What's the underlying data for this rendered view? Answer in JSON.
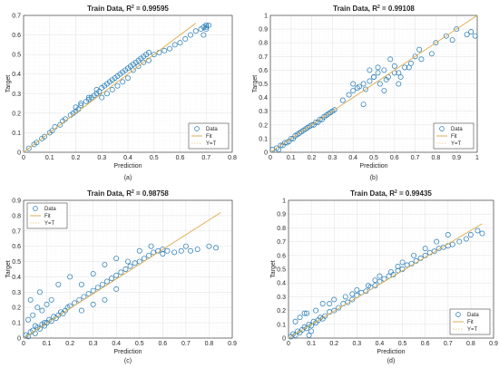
{
  "chart_data": [
    {
      "type": "scatter",
      "caption": "(a)",
      "title_prefix": "Train Data, R",
      "title_sup": "2",
      "title_value": " = 0.99595",
      "xlabel": "Prediction",
      "ylabel": "Target",
      "xlim": [
        0,
        0.8
      ],
      "ylim": [
        0,
        0.7
      ],
      "xticks": [
        "0",
        "0.1",
        "0.2",
        "0.3",
        "0.4",
        "0.5",
        "0.6",
        "0.7",
        "0.8"
      ],
      "yticks": [
        "0",
        "0.1",
        "0.2",
        "0.3",
        "0.4",
        "0.5",
        "0.6",
        "0.7"
      ],
      "grid": true,
      "legend": [
        "Data",
        "Fit",
        "Y=T"
      ],
      "legend_position": "bottom-right",
      "fit_line": {
        "x": [
          0,
          0.66
        ],
        "y": [
          0,
          0.66
        ]
      },
      "series": [
        {
          "name": "Data",
          "x": [
            0.02,
            0.04,
            0.05,
            0.07,
            0.08,
            0.1,
            0.11,
            0.12,
            0.14,
            0.15,
            0.16,
            0.18,
            0.19,
            0.2,
            0.21,
            0.22,
            0.24,
            0.25,
            0.26,
            0.27,
            0.28,
            0.29,
            0.3,
            0.31,
            0.32,
            0.33,
            0.34,
            0.35,
            0.36,
            0.37,
            0.38,
            0.39,
            0.4,
            0.41,
            0.42,
            0.43,
            0.44,
            0.45,
            0.46,
            0.47,
            0.48,
            0.5,
            0.52,
            0.54,
            0.56,
            0.58,
            0.6,
            0.62,
            0.64,
            0.66,
            0.68,
            0.69,
            0.7,
            0.7,
            0.7,
            0.71,
            0.69,
            0.7,
            0.3,
            0.32,
            0.34,
            0.36,
            0.38,
            0.4,
            0.42,
            0.44,
            0.46,
            0.48,
            0.2,
            0.22,
            0.25,
            0.28
          ],
          "y": [
            0.02,
            0.04,
            0.05,
            0.07,
            0.08,
            0.1,
            0.11,
            0.13,
            0.14,
            0.16,
            0.17,
            0.19,
            0.2,
            0.21,
            0.22,
            0.24,
            0.26,
            0.27,
            0.28,
            0.29,
            0.3,
            0.31,
            0.33,
            0.34,
            0.35,
            0.36,
            0.37,
            0.38,
            0.39,
            0.4,
            0.41,
            0.42,
            0.43,
            0.44,
            0.45,
            0.46,
            0.47,
            0.48,
            0.49,
            0.5,
            0.51,
            0.5,
            0.51,
            0.52,
            0.53,
            0.55,
            0.56,
            0.58,
            0.6,
            0.62,
            0.63,
            0.64,
            0.65,
            0.65,
            0.64,
            0.65,
            0.6,
            0.63,
            0.28,
            0.3,
            0.32,
            0.34,
            0.36,
            0.38,
            0.42,
            0.44,
            0.46,
            0.47,
            0.23,
            0.25,
            0.28,
            0.32
          ]
        }
      ]
    },
    {
      "type": "scatter",
      "caption": "(b)",
      "title_prefix": "Train Data, R",
      "title_sup": "2",
      "title_value": " = 0.99108",
      "xlabel": "Prediction",
      "ylabel": "Target",
      "xlim": [
        0,
        1
      ],
      "ylim": [
        0,
        1
      ],
      "xticks": [
        "0",
        "0.1",
        "0.2",
        "0.3",
        "0.4",
        "0.5",
        "0.6",
        "0.7",
        "0.8",
        "0.9",
        "1"
      ],
      "yticks": [
        "0",
        "0.1",
        "0.2",
        "0.3",
        "0.4",
        "0.5",
        "0.6",
        "0.7",
        "0.8",
        "0.9",
        "1"
      ],
      "grid": true,
      "legend": [
        "Data",
        "Fit",
        "Y=T"
      ],
      "legend_position": "bottom-right",
      "fit_line": {
        "x": [
          0,
          1
        ],
        "y": [
          0,
          1
        ]
      },
      "series": [
        {
          "name": "Data",
          "x": [
            0.01,
            0.03,
            0.05,
            0.07,
            0.09,
            0.1,
            0.12,
            0.14,
            0.16,
            0.18,
            0.2,
            0.22,
            0.24,
            0.26,
            0.28,
            0.3,
            0.31,
            0.04,
            0.06,
            0.08,
            0.11,
            0.13,
            0.15,
            0.17,
            0.19,
            0.21,
            0.23,
            0.25,
            0.27,
            0.29,
            0.35,
            0.38,
            0.4,
            0.42,
            0.45,
            0.48,
            0.5,
            0.52,
            0.55,
            0.57,
            0.6,
            0.62,
            0.65,
            0.4,
            0.43,
            0.46,
            0.5,
            0.53,
            0.56,
            0.6,
            0.63,
            0.67,
            0.7,
            0.73,
            0.78,
            0.8,
            0.85,
            0.88,
            0.9,
            0.95,
            0.97,
            0.99,
            0.48,
            0.52,
            0.58,
            0.45,
            0.55,
            0.62,
            0.68,
            0.72
          ],
          "y": [
            0.02,
            0.03,
            0.05,
            0.07,
            0.08,
            0.1,
            0.12,
            0.14,
            0.16,
            0.18,
            0.2,
            0.22,
            0.24,
            0.26,
            0.28,
            0.3,
            0.31,
            0.02,
            0.05,
            0.07,
            0.1,
            0.13,
            0.15,
            0.17,
            0.19,
            0.2,
            0.22,
            0.24,
            0.27,
            0.29,
            0.38,
            0.42,
            0.45,
            0.47,
            0.5,
            0.52,
            0.55,
            0.58,
            0.6,
            0.55,
            0.63,
            0.58,
            0.62,
            0.5,
            0.48,
            0.46,
            0.55,
            0.5,
            0.53,
            0.58,
            0.55,
            0.62,
            0.7,
            0.68,
            0.72,
            0.8,
            0.85,
            0.82,
            0.9,
            0.86,
            0.88,
            0.85,
            0.6,
            0.62,
            0.68,
            0.35,
            0.45,
            0.5,
            0.65,
            0.75
          ]
        }
      ]
    },
    {
      "type": "scatter",
      "caption": "(c)",
      "title_prefix": "Train Data, R",
      "title_sup": "2",
      "title_value": " = 0.98758",
      "xlabel": "Prediction",
      "ylabel": "Target",
      "xlim": [
        0,
        0.9
      ],
      "ylim": [
        0,
        0.9
      ],
      "xticks": [
        "0",
        "0.1",
        "0.2",
        "0.3",
        "0.4",
        "0.5",
        "0.6",
        "0.7",
        "0.8",
        "0.9"
      ],
      "yticks": [
        "0",
        "0.1",
        "0.2",
        "0.3",
        "0.4",
        "0.5",
        "0.6",
        "0.7",
        "0.8",
        "0.9"
      ],
      "grid": true,
      "legend": [
        "Data",
        "Fit",
        "Y=T"
      ],
      "legend_position": "top-left",
      "fit_line": {
        "x": [
          0,
          0.85
        ],
        "y": [
          0,
          0.82
        ]
      },
      "series": [
        {
          "name": "Data",
          "x": [
            0.01,
            0.02,
            0.03,
            0.04,
            0.05,
            0.06,
            0.07,
            0.08,
            0.09,
            0.1,
            0.11,
            0.12,
            0.13,
            0.14,
            0.15,
            0.16,
            0.17,
            0.18,
            0.19,
            0.2,
            0.22,
            0.24,
            0.26,
            0.28,
            0.3,
            0.32,
            0.34,
            0.36,
            0.38,
            0.4,
            0.42,
            0.44,
            0.46,
            0.48,
            0.5,
            0.52,
            0.54,
            0.56,
            0.58,
            0.6,
            0.62,
            0.65,
            0.68,
            0.7,
            0.72,
            0.75,
            0.8,
            0.83,
            0.02,
            0.04,
            0.06,
            0.08,
            0.1,
            0.12,
            0.05,
            0.03,
            0.07,
            0.09,
            0.15,
            0.2,
            0.25,
            0.3,
            0.35,
            0.4,
            0.45,
            0.5,
            0.55,
            0.6,
            0.25,
            0.3,
            0.35,
            0.4
          ],
          "y": [
            0.02,
            0.01,
            0.04,
            0.05,
            0.03,
            0.07,
            0.06,
            0.09,
            0.08,
            0.1,
            0.12,
            0.11,
            0.14,
            0.13,
            0.15,
            0.17,
            0.16,
            0.18,
            0.2,
            0.21,
            0.23,
            0.25,
            0.27,
            0.29,
            0.31,
            0.33,
            0.35,
            0.37,
            0.39,
            0.41,
            0.43,
            0.45,
            0.47,
            0.49,
            0.5,
            0.52,
            0.54,
            0.56,
            0.57,
            0.58,
            0.57,
            0.56,
            0.57,
            0.6,
            0.57,
            0.58,
            0.6,
            0.59,
            0.12,
            0.15,
            0.2,
            0.18,
            0.22,
            0.25,
            0.08,
            0.25,
            0.3,
            0.1,
            0.35,
            0.4,
            0.35,
            0.42,
            0.48,
            0.52,
            0.5,
            0.57,
            0.6,
            0.55,
            0.18,
            0.22,
            0.25,
            0.32
          ]
        }
      ]
    },
    {
      "type": "scatter",
      "caption": "(d)",
      "title_prefix": "Train Data, R",
      "title_sup": "2",
      "title_value": " = 0.99435",
      "xlabel": "Prediction",
      "ylabel": "Target",
      "xlim": [
        0,
        0.9
      ],
      "ylim": [
        0,
        1
      ],
      "xticks": [
        "0",
        "0.1",
        "0.2",
        "0.3",
        "0.4",
        "0.5",
        "0.6",
        "0.7",
        "0.8",
        "0.9"
      ],
      "yticks": [
        "0",
        "0.1",
        "0.2",
        "0.3",
        "0.4",
        "0.5",
        "0.6",
        "0.7",
        "0.8",
        "0.9",
        "1"
      ],
      "grid": true,
      "legend": [
        "Data",
        "Fit",
        "Y=T"
      ],
      "legend_position": "bottom-right",
      "fit_line": {
        "x": [
          0,
          0.85
        ],
        "y": [
          0,
          0.83
        ]
      },
      "series": [
        {
          "name": "Data",
          "x": [
            0.01,
            0.02,
            0.03,
            0.04,
            0.05,
            0.06,
            0.07,
            0.08,
            0.09,
            0.1,
            0.11,
            0.12,
            0.13,
            0.14,
            0.15,
            0.16,
            0.18,
            0.2,
            0.22,
            0.24,
            0.26,
            0.28,
            0.3,
            0.32,
            0.34,
            0.36,
            0.38,
            0.4,
            0.42,
            0.44,
            0.46,
            0.48,
            0.5,
            0.52,
            0.54,
            0.56,
            0.58,
            0.6,
            0.62,
            0.64,
            0.66,
            0.68,
            0.7,
            0.72,
            0.75,
            0.78,
            0.8,
            0.83,
            0.85,
            0.03,
            0.05,
            0.07,
            0.09,
            0.12,
            0.15,
            0.2,
            0.25,
            0.3,
            0.35,
            0.4,
            0.45,
            0.5,
            0.55,
            0.6,
            0.65,
            0.7,
            0.08,
            0.1,
            0.18,
            0.28,
            0.38,
            0.48
          ],
          "y": [
            0.01,
            0.03,
            0.02,
            0.05,
            0.04,
            0.06,
            0.08,
            0.07,
            0.1,
            0.09,
            0.12,
            0.11,
            0.13,
            0.15,
            0.14,
            0.16,
            0.19,
            0.2,
            0.22,
            0.25,
            0.26,
            0.28,
            0.31,
            0.33,
            0.34,
            0.37,
            0.38,
            0.41,
            0.43,
            0.45,
            0.46,
            0.49,
            0.5,
            0.53,
            0.54,
            0.56,
            0.58,
            0.6,
            0.62,
            0.63,
            0.65,
            0.66,
            0.67,
            0.68,
            0.7,
            0.72,
            0.75,
            0.78,
            0.76,
            0.12,
            0.15,
            0.18,
            0.02,
            0.2,
            0.25,
            0.28,
            0.3,
            0.35,
            0.38,
            0.45,
            0.48,
            0.55,
            0.6,
            0.65,
            0.7,
            0.75,
            0.18,
            0.05,
            0.25,
            0.32,
            0.42,
            0.52
          ]
        }
      ]
    }
  ],
  "colors": {
    "data_marker": "#1f77b4",
    "fit_line": "#d9a441",
    "yt_line": "#e8c070",
    "grid": "#e6e6e6",
    "axis": "#262626"
  }
}
